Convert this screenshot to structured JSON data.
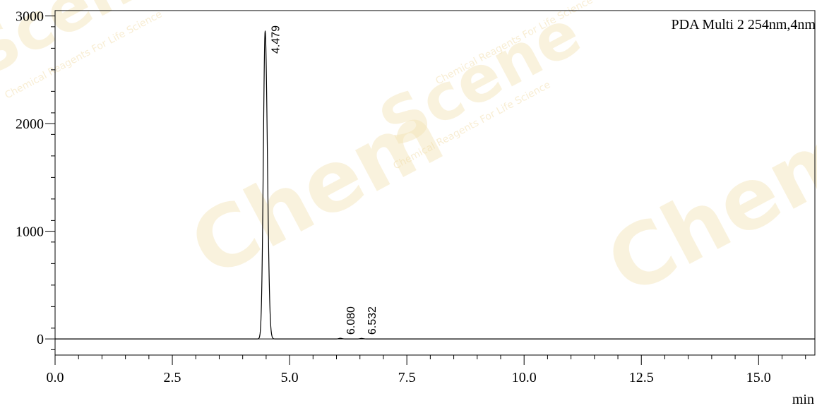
{
  "chart_data": {
    "type": "line",
    "legend_text": "PDA Multi 2 254nm,4nm",
    "legend_position": "top-right",
    "x_unit": "min",
    "xlim": [
      0.0,
      16.2
    ],
    "ylim": [
      -150,
      3050
    ],
    "x_ticks": [
      "0.0",
      "2.5",
      "5.0",
      "7.5",
      "10.0",
      "12.5",
      "15.0"
    ],
    "x_tick_values": [
      0.0,
      2.5,
      5.0,
      7.5,
      10.0,
      12.5,
      15.0
    ],
    "y_ticks": [
      "0",
      "1000",
      "2000",
      "3000"
    ],
    "y_tick_values": [
      0,
      1000,
      2000,
      3000
    ],
    "grid": false,
    "series": [
      {
        "peaks": [
          {
            "rt": 4.479,
            "label": "4.479",
            "height": 2860
          },
          {
            "rt": 6.08,
            "label": "6.080",
            "height": 6
          },
          {
            "rt": 6.532,
            "label": "6.532",
            "height": 5
          }
        ]
      }
    ],
    "line_color": "#000000"
  },
  "watermark": {
    "brand": "ChemScene",
    "tagline": "Chemical Reagents For Life Science",
    "color": "#f3e3b5"
  }
}
